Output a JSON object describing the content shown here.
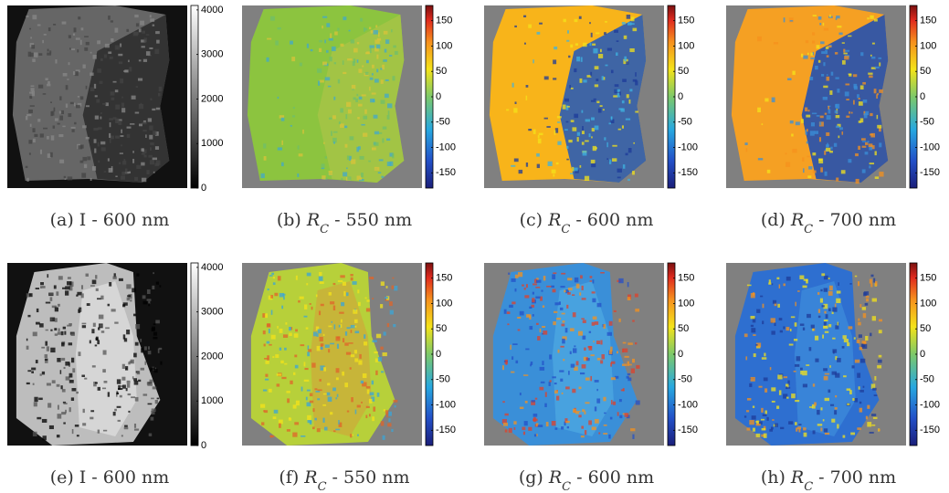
{
  "panels": [
    {
      "caption": {
        "label": "(a)",
        "symbol": "I",
        "rest": "- 600 nm"
      },
      "colorbar": {
        "type": "gray",
        "lim": [
          0,
          4100
        ],
        "ticks": [
          0,
          1000,
          2000,
          3000,
          4000
        ]
      }
    },
    {
      "caption": {
        "label": "(b)",
        "symbol": "R",
        "subscript": "C",
        "rest": "- 550 nm"
      },
      "colorbar": {
        "type": "jet",
        "lim": [
          -180,
          180
        ],
        "ticks": [
          -150,
          -100,
          -50,
          0,
          50,
          100,
          150
        ]
      }
    },
    {
      "caption": {
        "label": "(c)",
        "symbol": "R",
        "subscript": "C",
        "rest": "- 600 nm"
      },
      "colorbar": {
        "type": "jet",
        "lim": [
          -180,
          180
        ],
        "ticks": [
          -150,
          -100,
          -50,
          0,
          50,
          100,
          150
        ]
      }
    },
    {
      "caption": {
        "label": "(d)",
        "symbol": "R",
        "subscript": "C",
        "rest": "- 700 nm"
      },
      "colorbar": {
        "type": "jet",
        "lim": [
          -180,
          180
        ],
        "ticks": [
          -150,
          -100,
          -50,
          0,
          50,
          100,
          150
        ]
      }
    },
    {
      "caption": {
        "label": "(e)",
        "symbol": "I",
        "rest": "- 600 nm"
      },
      "colorbar": {
        "type": "gray",
        "lim": [
          0,
          4100
        ],
        "ticks": [
          0,
          1000,
          2000,
          3000,
          4000
        ]
      }
    },
    {
      "caption": {
        "label": "(f)",
        "symbol": "R",
        "subscript": "C",
        "rest": "- 550 nm"
      },
      "colorbar": {
        "type": "jet",
        "lim": [
          -180,
          180
        ],
        "ticks": [
          -150,
          -100,
          -50,
          0,
          50,
          100,
          150
        ]
      }
    },
    {
      "caption": {
        "label": "(g)",
        "symbol": "R",
        "subscript": "C",
        "rest": "- 600 nm"
      },
      "colorbar": {
        "type": "jet",
        "lim": [
          -180,
          180
        ],
        "ticks": [
          -150,
          -100,
          -50,
          0,
          50,
          100,
          150
        ]
      }
    },
    {
      "caption": {
        "label": "(h)",
        "symbol": "R",
        "subscript": "C",
        "rest": "- 700 nm"
      },
      "colorbar": {
        "type": "jet",
        "lim": [
          -180,
          180
        ],
        "ticks": [
          -150,
          -100,
          -50,
          0,
          50,
          100,
          150
        ]
      }
    }
  ]
}
